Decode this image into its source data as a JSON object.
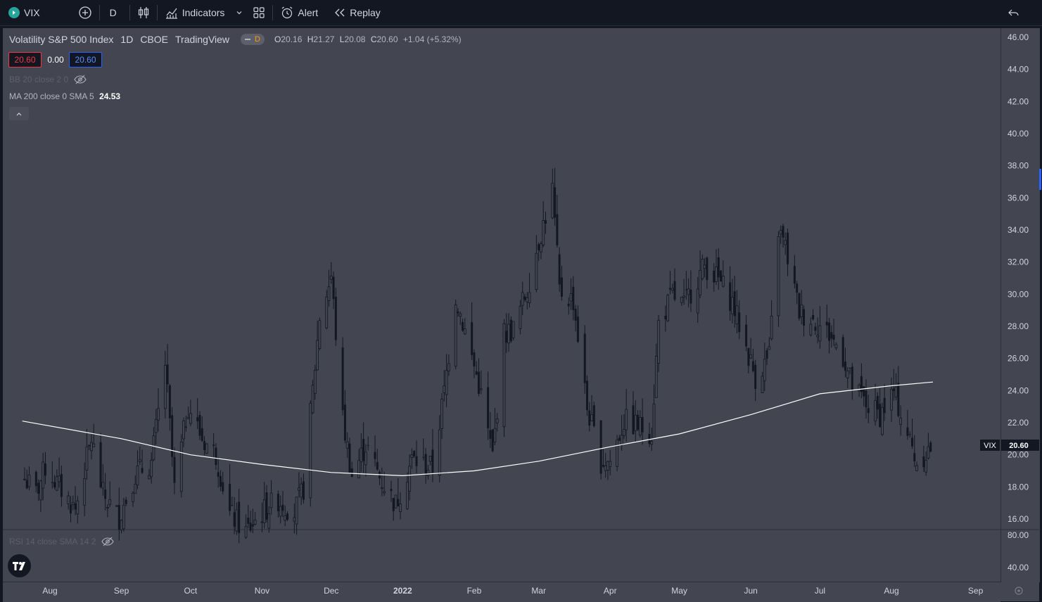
{
  "toolbar": {
    "symbol": "VIX",
    "interval": "D",
    "indicators_label": "Indicators",
    "alert_label": "Alert",
    "replay_label": "Replay"
  },
  "legend": {
    "title": "Volatility S&P 500 Index",
    "interval": "1D",
    "exchange": "CBOE",
    "source": "TradingView",
    "pill_label": "D",
    "o_key": "O",
    "o_val": "20.16",
    "h_key": "H",
    "h_val": "21.27",
    "l_key": "L",
    "l_val": "20.08",
    "c_key": "C",
    "c_val": "20.60",
    "change": "+1.04 (+5.32%)",
    "bid": "20.60",
    "spread": "0.00",
    "ask": "20.60",
    "bb_label": "BB 20 close 2 0",
    "ma_label": "MA 200 close 0 SMA 5",
    "ma_value": "24.53",
    "rsi_label": "RSI 14 close SMA 14 2"
  },
  "price_label": {
    "symbol": "VIX",
    "value": "20.60"
  },
  "colors": {
    "background": "#434651",
    "candle": "#131722",
    "ma_line": "#ffffff",
    "accent_blue": "#2962ff",
    "accent_red": "#f23645",
    "pill_orange": "#ff9800"
  },
  "chart_data": {
    "type": "candlestick",
    "symbol": "VIX",
    "y_axis_ticks": [
      "46.00",
      "44.00",
      "42.00",
      "40.00",
      "38.00",
      "36.00",
      "34.00",
      "32.00",
      "30.00",
      "28.00",
      "26.00",
      "24.00",
      "22.00",
      "20.00",
      "18.00",
      "16.00"
    ],
    "rsi_axis_ticks": [
      "80.00",
      "40.00"
    ],
    "x_axis_ticks": [
      "Aug",
      "Sep",
      "Oct",
      "Nov",
      "Dec",
      "2022",
      "Feb",
      "Mar",
      "Apr",
      "May",
      "Jun",
      "Jul",
      "Aug",
      "Sep"
    ],
    "ylim": [
      16,
      46
    ],
    "close_points": [
      {
        "date": "2021-07-21",
        "close": 18.5
      },
      {
        "date": "2021-07-26",
        "close": 17.6
      },
      {
        "date": "2021-07-30",
        "close": 19.2
      },
      {
        "date": "2021-08-05",
        "close": 18.0
      },
      {
        "date": "2021-08-12",
        "close": 16.6
      },
      {
        "date": "2021-08-19",
        "close": 21.0
      },
      {
        "date": "2021-08-24",
        "close": 17.5
      },
      {
        "date": "2021-08-31",
        "close": 16.1
      },
      {
        "date": "2021-09-07",
        "close": 18.8
      },
      {
        "date": "2021-09-14",
        "close": 19.5
      },
      {
        "date": "2021-09-20",
        "close": 25.7
      },
      {
        "date": "2021-09-24",
        "close": 17.8
      },
      {
        "date": "2021-09-30",
        "close": 23.1
      },
      {
        "date": "2021-10-06",
        "close": 21.0
      },
      {
        "date": "2021-10-12",
        "close": 20.0
      },
      {
        "date": "2021-10-18",
        "close": 16.3
      },
      {
        "date": "2021-10-25",
        "close": 15.2
      },
      {
        "date": "2021-11-01",
        "close": 16.4
      },
      {
        "date": "2021-11-08",
        "close": 17.2
      },
      {
        "date": "2021-11-15",
        "close": 16.4
      },
      {
        "date": "2021-11-19",
        "close": 17.9
      },
      {
        "date": "2021-11-26",
        "close": 28.6
      },
      {
        "date": "2021-12-01",
        "close": 31.1
      },
      {
        "date": "2021-12-06",
        "close": 22.2
      },
      {
        "date": "2021-12-10",
        "close": 18.7
      },
      {
        "date": "2021-12-16",
        "close": 20.6
      },
      {
        "date": "2021-12-22",
        "close": 18.6
      },
      {
        "date": "2021-12-29",
        "close": 16.9
      },
      {
        "date": "2022-01-05",
        "close": 19.7
      },
      {
        "date": "2022-01-10",
        "close": 19.4
      },
      {
        "date": "2022-01-14",
        "close": 19.2
      },
      {
        "date": "2022-01-19",
        "close": 23.9
      },
      {
        "date": "2022-01-24",
        "close": 29.9
      },
      {
        "date": "2022-01-28",
        "close": 27.7
      },
      {
        "date": "2022-02-03",
        "close": 24.4
      },
      {
        "date": "2022-02-09",
        "close": 19.9
      },
      {
        "date": "2022-02-14",
        "close": 27.5
      },
      {
        "date": "2022-02-18",
        "close": 27.8
      },
      {
        "date": "2022-02-24",
        "close": 30.3
      },
      {
        "date": "2022-03-01",
        "close": 33.3
      },
      {
        "date": "2022-03-07",
        "close": 36.5
      },
      {
        "date": "2022-03-10",
        "close": 30.2
      },
      {
        "date": "2022-03-16",
        "close": 29.6
      },
      {
        "date": "2022-03-22",
        "close": 22.9
      },
      {
        "date": "2022-03-28",
        "close": 19.6
      },
      {
        "date": "2022-04-01",
        "close": 19.6
      },
      {
        "date": "2022-04-07",
        "close": 22.1
      },
      {
        "date": "2022-04-13",
        "close": 21.8
      },
      {
        "date": "2022-04-19",
        "close": 21.4
      },
      {
        "date": "2022-04-22",
        "close": 28.2
      },
      {
        "date": "2022-04-28",
        "close": 29.9
      },
      {
        "date": "2022-05-03",
        "close": 29.3
      },
      {
        "date": "2022-05-06",
        "close": 30.2
      },
      {
        "date": "2022-05-12",
        "close": 31.8
      },
      {
        "date": "2022-05-18",
        "close": 30.9
      },
      {
        "date": "2022-05-24",
        "close": 29.5
      },
      {
        "date": "2022-05-31",
        "close": 26.2
      },
      {
        "date": "2022-06-03",
        "close": 24.8
      },
      {
        "date": "2022-06-09",
        "close": 26.1
      },
      {
        "date": "2022-06-13",
        "close": 34.0
      },
      {
        "date": "2022-06-16",
        "close": 32.9
      },
      {
        "date": "2022-06-22",
        "close": 28.9
      },
      {
        "date": "2022-06-28",
        "close": 28.4
      },
      {
        "date": "2022-07-05",
        "close": 27.5
      },
      {
        "date": "2022-07-11",
        "close": 26.2
      },
      {
        "date": "2022-07-15",
        "close": 24.2
      },
      {
        "date": "2022-07-21",
        "close": 23.1
      },
      {
        "date": "2022-07-27",
        "close": 22.5
      },
      {
        "date": "2022-08-02",
        "close": 23.9
      },
      {
        "date": "2022-08-08",
        "close": 21.3
      },
      {
        "date": "2022-08-12",
        "close": 19.5
      },
      {
        "date": "2022-08-19",
        "close": 20.6
      }
    ],
    "moving_average": {
      "name": "MA 200 close 0 SMA 5",
      "points": [
        {
          "date": "2021-07-20",
          "value": 22.1
        },
        {
          "date": "2021-09-01",
          "value": 21.0
        },
        {
          "date": "2021-10-01",
          "value": 20.0
        },
        {
          "date": "2021-11-01",
          "value": 19.4
        },
        {
          "date": "2021-12-01",
          "value": 18.9
        },
        {
          "date": "2022-01-01",
          "value": 18.7
        },
        {
          "date": "2022-02-01",
          "value": 19.0
        },
        {
          "date": "2022-03-01",
          "value": 19.6
        },
        {
          "date": "2022-04-01",
          "value": 20.5
        },
        {
          "date": "2022-05-01",
          "value": 21.3
        },
        {
          "date": "2022-06-01",
          "value": 22.5
        },
        {
          "date": "2022-07-01",
          "value": 23.8
        },
        {
          "date": "2022-08-01",
          "value": 24.3
        },
        {
          "date": "2022-08-19",
          "value": 24.53
        }
      ]
    }
  }
}
